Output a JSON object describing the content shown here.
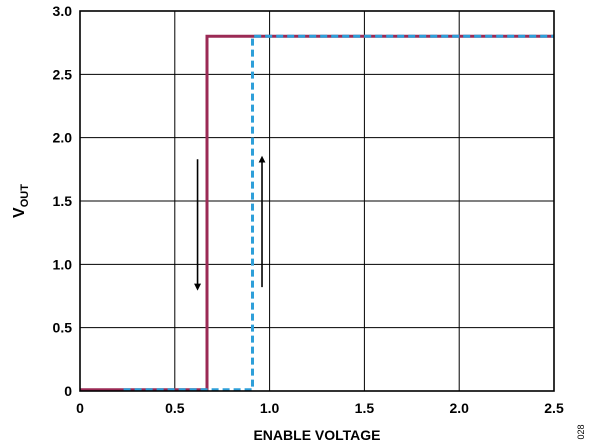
{
  "chart_data": {
    "type": "line",
    "xlabel": "ENABLE VOLTAGE",
    "ylabel": {
      "main": "V",
      "subscript": "OUT"
    },
    "xlim": [
      0,
      2.5
    ],
    "ylim": [
      0,
      3.0
    ],
    "xticks": [
      0,
      0.5,
      1.0,
      1.5,
      2.0,
      2.5
    ],
    "xtick_labels": [
      "0",
      "0.5",
      "1.0",
      "1.5",
      "2.0",
      "2.5"
    ],
    "yticks": [
      0,
      0.5,
      1.0,
      1.5,
      2.0,
      2.5,
      3.0
    ],
    "ytick_labels": [
      "0",
      "0.5",
      "1.0",
      "1.5",
      "2.0",
      "2.5",
      "3.0"
    ],
    "grid": true,
    "figure_id": "028",
    "series": [
      {
        "style": "solid",
        "color": "#9b2a55",
        "x": [
          0,
          0.67,
          0.67,
          2.5
        ],
        "y": [
          0.01,
          0.01,
          2.8,
          2.8
        ]
      },
      {
        "style": "dashed",
        "color": "#2e9fd9",
        "x": [
          0.23,
          0.91,
          0.91,
          2.5
        ],
        "y": [
          0.01,
          0.01,
          2.8,
          2.8
        ]
      }
    ],
    "annotations": [
      {
        "type": "arrow",
        "direction": "down",
        "x": 0.62,
        "y_from": 1.83,
        "y_to": 0.82
      },
      {
        "type": "arrow",
        "direction": "up",
        "x": 0.96,
        "y_from": 0.82,
        "y_to": 1.83
      }
    ]
  }
}
